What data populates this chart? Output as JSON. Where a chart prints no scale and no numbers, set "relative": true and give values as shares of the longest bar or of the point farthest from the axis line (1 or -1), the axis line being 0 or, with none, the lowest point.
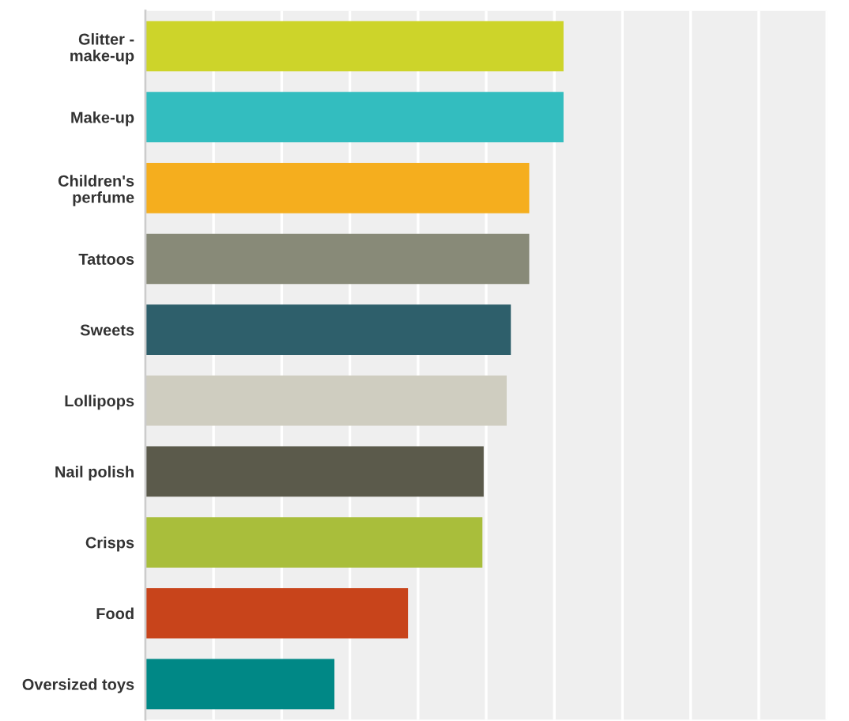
{
  "chart_data": {
    "type": "bar",
    "orientation": "horizontal",
    "relative": true,
    "grid": "x",
    "categories": [
      "Glitter -\nmake-up",
      "Make-up",
      "Children's\nperfume",
      "Tattoos",
      "Sweets",
      "Lollipops",
      "Nail polish",
      "Crisps",
      "Food",
      "Oversized toys"
    ],
    "values": [
      1,
      1,
      0.918,
      0.918,
      0.874,
      0.864,
      0.809,
      0.806,
      0.628,
      0.452
    ],
    "colors": [
      "#cdd42a",
      "#33bdbf",
      "#f5ae1e",
      "#888a78",
      "#2e5f6b",
      "#cfcdc0",
      "#5b5a4b",
      "#a9be3b",
      "#c8441b",
      "#008886"
    ]
  }
}
